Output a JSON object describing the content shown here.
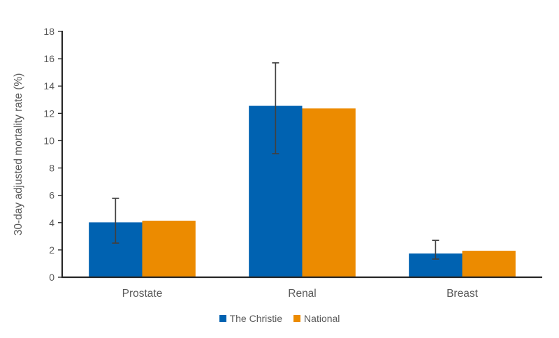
{
  "chart_data": {
    "type": "bar",
    "title": "",
    "categories": [
      "Prostate",
      "Renal",
      "Breast"
    ],
    "series": [
      {
        "name": "The Christie",
        "color": "#0062B1",
        "values": [
          4.02,
          12.55,
          1.74
        ],
        "error_bars": [
          {
            "low": 2.5,
            "high": 5.78
          },
          {
            "low": 9.05,
            "high": 15.7
          },
          {
            "low": 1.33,
            "high": 2.7
          }
        ]
      },
      {
        "name": "National",
        "color": "#EC8B00",
        "values": [
          4.14,
          12.36,
          1.94
        ],
        "error_bars": null
      }
    ],
    "xlabel": "",
    "ylabel": "30-day adjusted mortality rate (%)",
    "ylim": [
      0,
      18
    ],
    "ytick_step": 2,
    "yticks": [
      0,
      2,
      4,
      6,
      8,
      10,
      12,
      14,
      16,
      18
    ],
    "grid": false,
    "legend_position": "bottom",
    "legend_labels": [
      "The Christie",
      "National"
    ]
  },
  "style": {
    "background_color": "#FFFFFF",
    "axis_color": "#262626",
    "tick_label_color": "#595959",
    "category_label_color": "#595959",
    "axis_title_color": "#595959",
    "legend_text_color": "#595959",
    "error_bar_color": "#404040"
  }
}
